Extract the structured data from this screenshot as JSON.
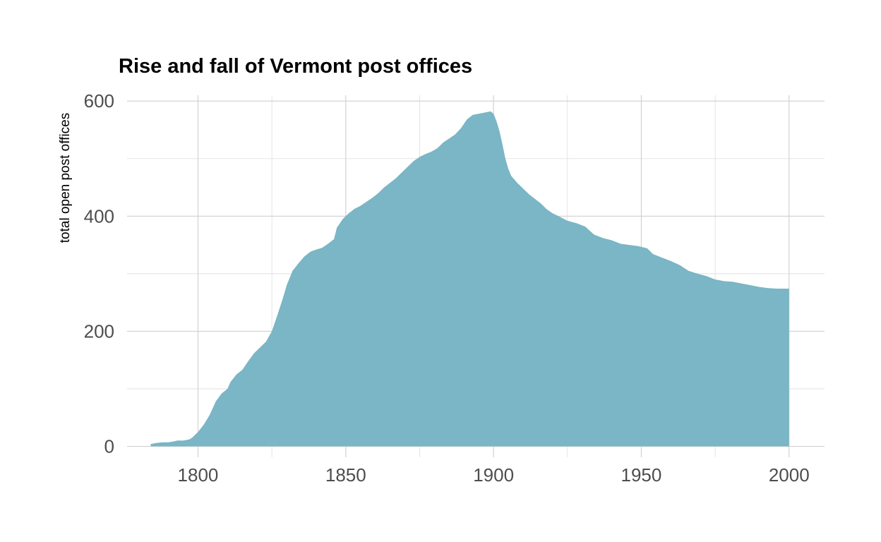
{
  "chart_data": {
    "type": "area",
    "title": "Rise and fall of Vermont post offices",
    "xlabel": "",
    "ylabel": "total open post offices",
    "xlim": [
      1776,
      2012
    ],
    "ylim": [
      -19,
      610
    ],
    "x_ticks": [
      1800,
      1850,
      1900,
      1950,
      2000
    ],
    "x_tick_labels": [
      "1800",
      "1850",
      "1900",
      "1950",
      "2000"
    ],
    "y_ticks": [
      0,
      200,
      400,
      600
    ],
    "y_tick_labels": [
      "0",
      "200",
      "400",
      "600"
    ],
    "grid": true,
    "legend": "none",
    "fill_color": "#7ab6c5",
    "x": [
      1784,
      1786,
      1788,
      1790,
      1792,
      1793,
      1795,
      1797,
      1798,
      1800,
      1802,
      1804,
      1806,
      1808,
      1810,
      1811,
      1813,
      1815,
      1817,
      1819,
      1821,
      1823,
      1825,
      1827,
      1829,
      1830,
      1832,
      1834,
      1836,
      1838,
      1840,
      1842,
      1844,
      1846,
      1847,
      1849,
      1850,
      1851,
      1853,
      1855,
      1857,
      1859,
      1861,
      1863,
      1865,
      1867,
      1869,
      1871,
      1873,
      1875,
      1877,
      1879,
      1881,
      1883,
      1885,
      1887,
      1889,
      1891,
      1893,
      1895,
      1897,
      1899,
      1900,
      1901,
      1902,
      1903,
      1904,
      1905,
      1906,
      1908,
      1910,
      1912,
      1914,
      1916,
      1918,
      1920,
      1922,
      1925,
      1928,
      1931,
      1934,
      1937,
      1940,
      1943,
      1946,
      1949,
      1952,
      1954,
      1957,
      1960,
      1963,
      1966,
      1969,
      1972,
      1975,
      1978,
      1981,
      1984,
      1987,
      1990,
      1993,
      1996,
      2000
    ],
    "y": [
      4,
      6,
      7,
      7,
      9,
      10,
      10,
      12,
      15,
      25,
      38,
      55,
      78,
      92,
      100,
      112,
      125,
      133,
      148,
      162,
      172,
      182,
      200,
      230,
      262,
      280,
      305,
      318,
      330,
      338,
      342,
      345,
      352,
      360,
      380,
      395,
      400,
      405,
      413,
      418,
      425,
      432,
      440,
      450,
      458,
      466,
      476,
      486,
      496,
      503,
      508,
      512,
      518,
      528,
      535,
      542,
      553,
      568,
      576,
      578,
      580,
      582,
      578,
      565,
      548,
      525,
      500,
      482,
      470,
      458,
      448,
      438,
      430,
      422,
      412,
      405,
      400,
      392,
      388,
      382,
      368,
      362,
      358,
      352,
      350,
      348,
      344,
      334,
      328,
      322,
      315,
      305,
      300,
      296,
      290,
      287,
      286,
      283,
      280,
      277,
      275,
      274,
      274
    ]
  }
}
